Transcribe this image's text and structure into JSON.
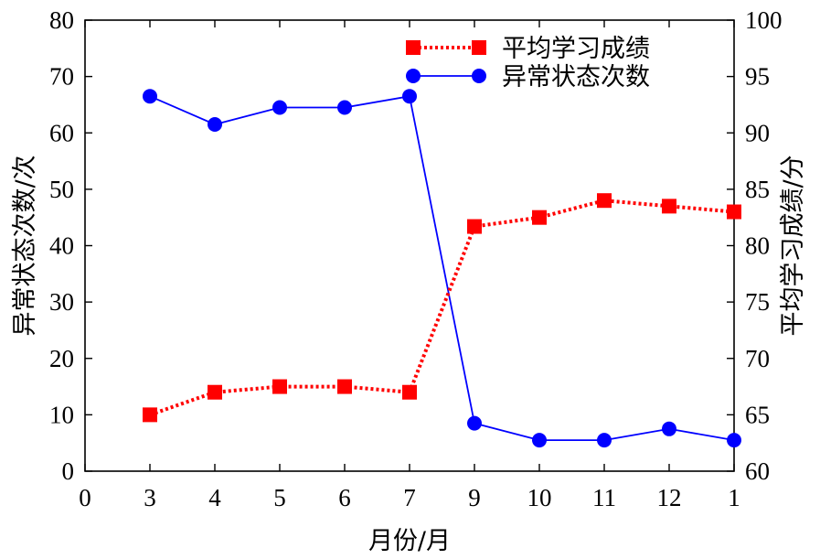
{
  "chart_data": {
    "type": "line",
    "categories": [
      "0",
      "3",
      "4",
      "5",
      "6",
      "7",
      "9",
      "10",
      "11",
      "12",
      "1"
    ],
    "xlabel": "月份/月",
    "ylabel_left": "异常状态次数/次",
    "ylabel_right": "平均学习成绩/分",
    "ylim_left": [
      0,
      80
    ],
    "ylim_right": [
      60,
      100
    ],
    "yticks_left": [
      "0",
      "10",
      "20",
      "30",
      "40",
      "50",
      "60",
      "70",
      "80"
    ],
    "yticks_right": [
      "60",
      "65",
      "70",
      "75",
      "80",
      "85",
      "90",
      "95",
      "100"
    ],
    "grid": false,
    "legend_position": "top-right",
    "series": [
      {
        "name": "平均学习成绩",
        "axis": "right",
        "color": "#ff0000",
        "line_style": "dotted",
        "marker": "square",
        "values": [
          null,
          65,
          67,
          67.5,
          67.5,
          67,
          81.7,
          82.5,
          84,
          83.5,
          83
        ]
      },
      {
        "name": "异常状态次数",
        "axis": "left",
        "color": "#0000ff",
        "line_style": "solid",
        "marker": "circle",
        "values": [
          null,
          66.5,
          61.5,
          64.5,
          64.5,
          66.5,
          8.5,
          5.5,
          5.5,
          7.5,
          5.5
        ]
      }
    ]
  }
}
